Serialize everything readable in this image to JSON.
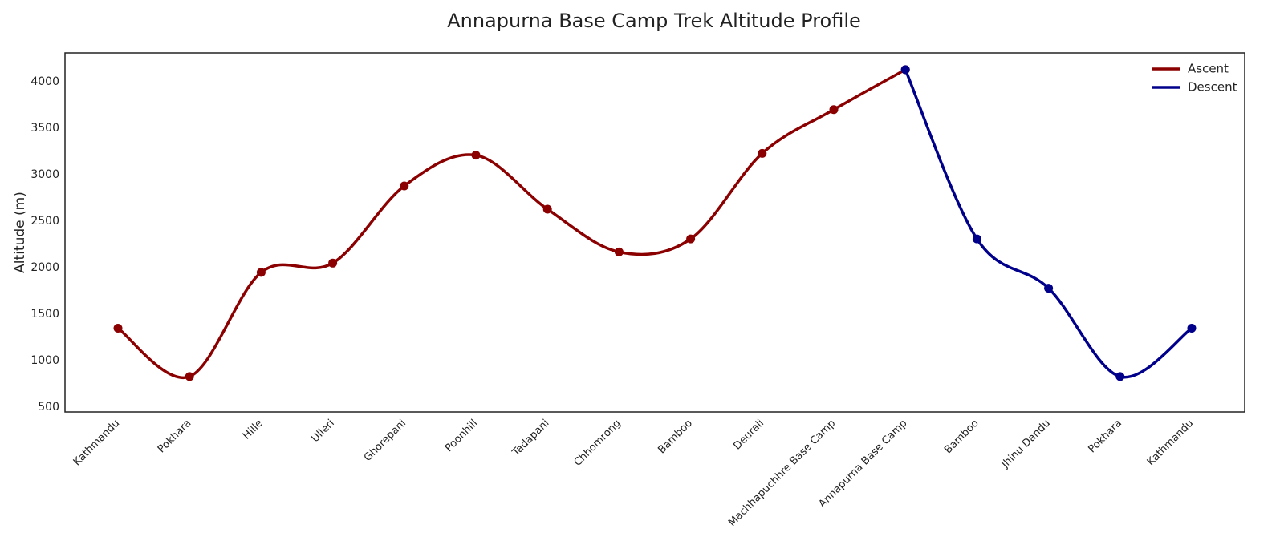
{
  "chart_data": {
    "type": "line",
    "title": "Annapurna Base Camp Trek Altitude Profile",
    "y_label": "Altitude (m)",
    "categories": [
      "Kathmandu",
      "Pokhara",
      "Hille",
      "Ulleri",
      "Ghorepani",
      "Poonhill",
      "Tadapani",
      "Chhomrong",
      "Bamboo",
      "Deurali",
      "Machhapuchhre Base Camp",
      "Annapurna Base Camp",
      "Bamboo",
      "Jhinu Dandu",
      "Pokhara",
      "Kathmandu"
    ],
    "series": [
      {
        "name": "Ascent",
        "color": "#8b0000",
        "values": [
          1350,
          830,
          1950,
          2050,
          2880,
          3210,
          2630,
          2170,
          2310,
          3230,
          3700,
          4130,
          null,
          null,
          null,
          null
        ]
      },
      {
        "name": "Descent",
        "color": "#00008b",
        "values": [
          null,
          null,
          null,
          null,
          null,
          null,
          null,
          null,
          null,
          null,
          null,
          4130,
          2310,
          1780,
          830,
          1350
        ]
      }
    ],
    "ylim": [
      450,
      4310
    ],
    "yticks": [
      500,
      1000,
      1500,
      2000,
      2500,
      3000,
      3500,
      4000
    ],
    "grid": false,
    "legend": "upper right",
    "smooth": true
  }
}
